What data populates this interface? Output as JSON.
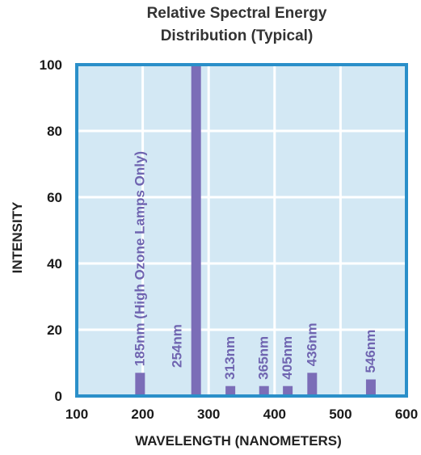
{
  "chart_data": {
    "type": "bar",
    "title_lines": [
      "Relative Spectral Energy",
      "Distribution (Typical)"
    ],
    "xlabel": "WAVELENGTH (NANOMETERS)",
    "ylabel": "INTENSITY",
    "xlim": [
      100,
      600
    ],
    "ylim": [
      0,
      100
    ],
    "x_ticks": [
      100,
      200,
      300,
      400,
      500,
      600
    ],
    "y_ticks": [
      0,
      20,
      40,
      60,
      80,
      100
    ],
    "grid": true,
    "bars": [
      {
        "x": 196,
        "value": 7,
        "label": "185nm (High Ozone Lamps Only)"
      },
      {
        "x": 281,
        "value": 100,
        "label": "254nm"
      },
      {
        "x": 333,
        "value": 3,
        "label": "313nm"
      },
      {
        "x": 384,
        "value": 3,
        "label": "365nm"
      },
      {
        "x": 420,
        "value": 3,
        "label": "405nm"
      },
      {
        "x": 457,
        "value": 7,
        "label": "436nm"
      },
      {
        "x": 546,
        "value": 5,
        "label": "546nm"
      }
    ],
    "colors": {
      "plot_background": "#d3e8f4",
      "border": "#2a8fc9",
      "grid": "#ffffff",
      "bar": "#7b6db7",
      "bar_label": "#6f64b0"
    }
  }
}
